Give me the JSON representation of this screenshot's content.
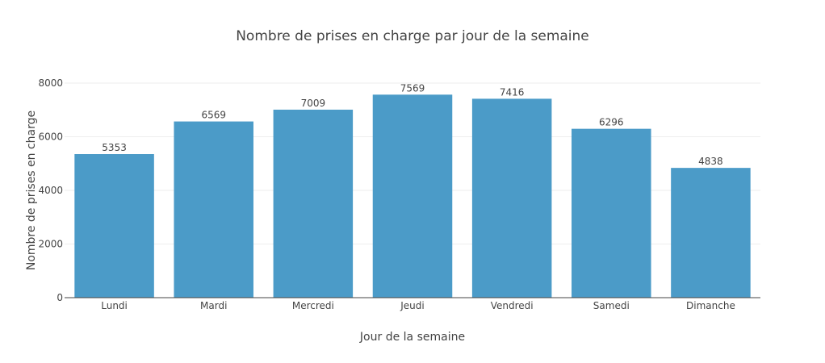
{
  "chart_data": {
    "type": "bar",
    "title": "Nombre de prises en charge par jour de la semaine",
    "xlabel": "Jour de la semaine",
    "ylabel": "Nombre de prises en charge",
    "categories": [
      "Lundi",
      "Mardi",
      "Mercredi",
      "Jeudi",
      "Vendredi",
      "Samedi",
      "Dimanche"
    ],
    "values": [
      5353,
      6569,
      7009,
      7569,
      7416,
      6296,
      4838
    ],
    "ylim": [
      0,
      8000
    ],
    "yticks": [
      0,
      2000,
      4000,
      6000,
      8000
    ],
    "grid": true,
    "legend": "none",
    "bar_color": "#4b9bc8"
  }
}
